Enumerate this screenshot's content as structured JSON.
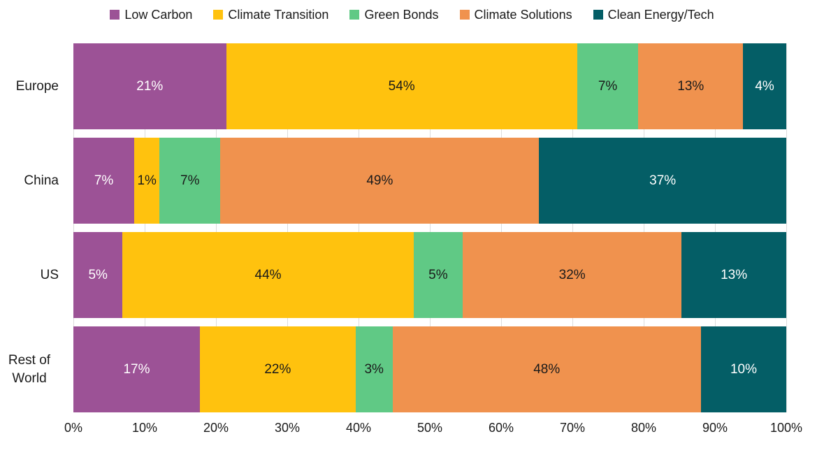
{
  "chart_data": {
    "type": "bar",
    "variant": "horizontal-stacked-100",
    "categories": [
      "Europe",
      "China",
      "US",
      "Rest of World"
    ],
    "series": [
      {
        "name": "Low Carbon",
        "color": "#9C5296",
        "label_color": "#ffffff",
        "values": [
          21,
          7,
          5,
          17
        ]
      },
      {
        "name": "Climate Transition",
        "color": "#FFC20E",
        "label_color": "#1a1a1a",
        "values": [
          54,
          1,
          44,
          22
        ]
      },
      {
        "name": "Green Bonds",
        "color": "#60C985",
        "label_color": "#1a1a1a",
        "values": [
          7,
          7,
          5,
          3
        ]
      },
      {
        "name": "Climate Solutions",
        "color": "#F0924E",
        "label_color": "#1a1a1a",
        "values": [
          13,
          49,
          32,
          48
        ]
      },
      {
        "name": "Clean Energy/Tech",
        "color": "#045E66",
        "label_color": "#ffffff",
        "values": [
          4,
          37,
          13,
          10
        ]
      }
    ],
    "data_label_suffix": "%",
    "xlabel": "",
    "ylabel": "",
    "title": "",
    "x_axis": {
      "min": 0,
      "max": 100,
      "tick_step": 10,
      "tick_labels": [
        "0%",
        "10%",
        "20%",
        "30%",
        "40%",
        "50%",
        "60%",
        "70%",
        "80%",
        "90%",
        "100%"
      ]
    },
    "grid": true,
    "gridline_color": "#dcdcdc",
    "legend_position": "top"
  }
}
